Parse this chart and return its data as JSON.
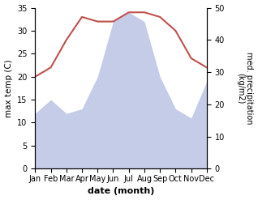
{
  "months": [
    "Jan",
    "Feb",
    "Mar",
    "Apr",
    "May",
    "Jun",
    "Jul",
    "Aug",
    "Sep",
    "Oct",
    "Nov",
    "Dec"
  ],
  "temperature": [
    20,
    22,
    28,
    33,
    32,
    32,
    34,
    34,
    33,
    30,
    24,
    22
  ],
  "precipitation": [
    12,
    15,
    12,
    13,
    20,
    32,
    34,
    32,
    20,
    13,
    11,
    19
  ],
  "temp_color": "#c0504d",
  "precip_fill_color": "#c5cce8",
  "ylabel_left": "max temp (C)",
  "ylabel_right": "med. precipitation\n(kg/m2)",
  "xlabel": "date (month)",
  "ylim_left": [
    0,
    35
  ],
  "ylim_right": [
    0,
    50
  ],
  "yticks_left": [
    0,
    5,
    10,
    15,
    20,
    25,
    30,
    35
  ],
  "yticks_right": [
    0,
    10,
    20,
    30,
    40,
    50
  ],
  "background_color": "#ffffff"
}
